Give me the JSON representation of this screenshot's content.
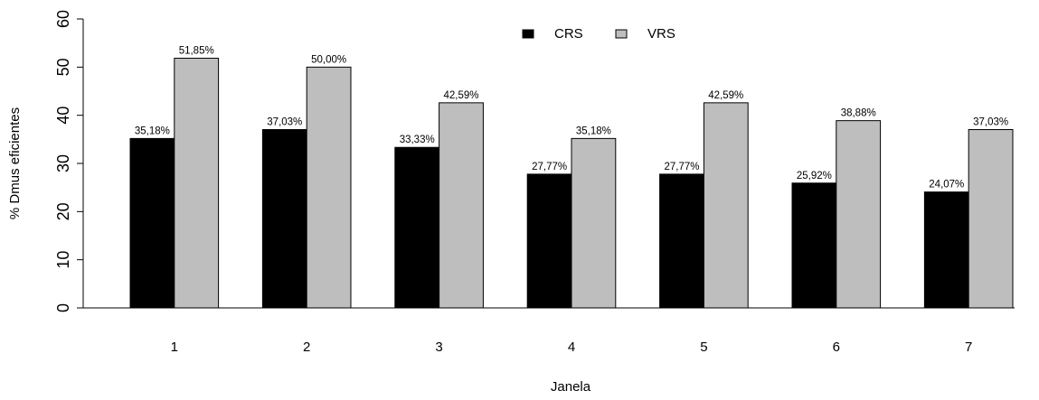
{
  "chart_data": {
    "type": "bar",
    "categories": [
      "1",
      "2",
      "3",
      "4",
      "5",
      "6",
      "7"
    ],
    "series": [
      {
        "name": "CRS",
        "color": "#000000",
        "values": [
          35.18,
          37.03,
          33.33,
          27.77,
          27.77,
          25.92,
          24.07
        ],
        "labels": [
          "35,18%",
          "37,03%",
          "33,33%",
          "27,77%",
          "27,77%",
          "25,92%",
          "24,07%"
        ]
      },
      {
        "name": "VRS",
        "color": "#bebebe",
        "values": [
          51.85,
          50.0,
          42.59,
          35.18,
          42.59,
          38.88,
          37.03
        ],
        "labels": [
          "51,85%",
          "50,00%",
          "42,59%",
          "35,18%",
          "42,59%",
          "38,88%",
          "37,03%"
        ]
      }
    ],
    "title": "",
    "xlabel": "Janela",
    "ylabel": "% Dmus eficientes",
    "ylim": [
      0,
      60
    ],
    "yticks": [
      0,
      10,
      20,
      30,
      40,
      50,
      60
    ],
    "grid": false,
    "legend_position": "top-center"
  }
}
